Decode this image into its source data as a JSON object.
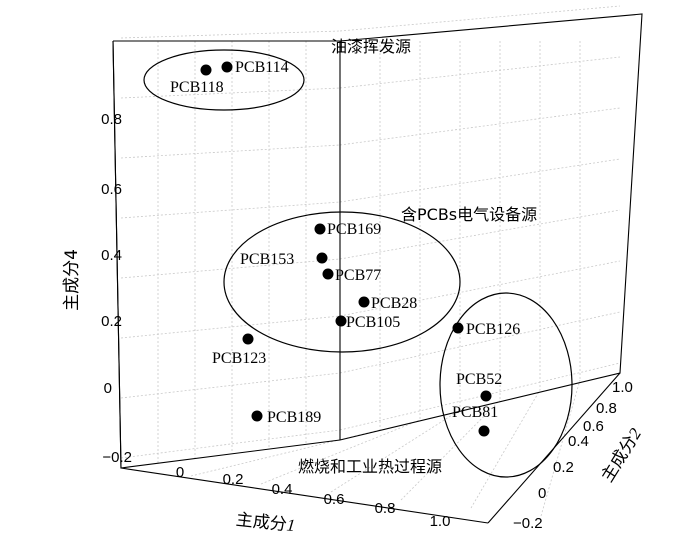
{
  "chart_data": {
    "type": "scatter",
    "title": "",
    "axes": {
      "x": {
        "label_main": "主成分",
        "label_num": "1",
        "ticks": [
          "0",
          "0.2",
          "0.4",
          "0.6",
          "0.8",
          "1.0"
        ]
      },
      "y": {
        "label_main": "主成分",
        "label_num": "2",
        "ticks": [
          "−0.2",
          "0",
          "0.2",
          "0.4",
          "0.6",
          "0.8",
          "1.0"
        ]
      },
      "z": {
        "label": "主成分4",
        "ticks": [
          "−0.2",
          "0",
          "0.2",
          "0.4",
          "0.6",
          "0.8"
        ]
      }
    },
    "points": [
      {
        "label": "PCB114",
        "x": 0.05,
        "y": 0.85,
        "z": 0.95
      },
      {
        "label": "PCB118",
        "x": 0.02,
        "y": 0.82,
        "z": 0.92
      },
      {
        "label": "PCB169",
        "x": 0.3,
        "y": 0.55,
        "z": 0.5
      },
      {
        "label": "PCB153",
        "x": 0.28,
        "y": 0.5,
        "z": 0.42
      },
      {
        "label": "PCB77",
        "x": 0.3,
        "y": 0.45,
        "z": 0.38
      },
      {
        "label": "PCB28",
        "x": 0.35,
        "y": 0.4,
        "z": 0.3
      },
      {
        "label": "PCB105",
        "x": 0.32,
        "y": 0.35,
        "z": 0.22
      },
      {
        "label": "PCB123",
        "x": 0.1,
        "y": 0.3,
        "z": 0.15
      },
      {
        "label": "PCB189",
        "x": 0.15,
        "y": 0.1,
        "z": -0.05
      },
      {
        "label": "PCB126",
        "x": 0.7,
        "y": 0.55,
        "z": 0.4
      },
      {
        "label": "PCB52",
        "x": 0.75,
        "y": 0.45,
        "z": 0.2
      },
      {
        "label": "PCB81",
        "x": 0.78,
        "y": 0.4,
        "z": 0.1
      }
    ],
    "groups": [
      {
        "label": "油漆挥发源"
      },
      {
        "label": "含PCBs电气设备源"
      },
      {
        "label": "燃烧和工业热过程源"
      }
    ],
    "grid": true
  }
}
